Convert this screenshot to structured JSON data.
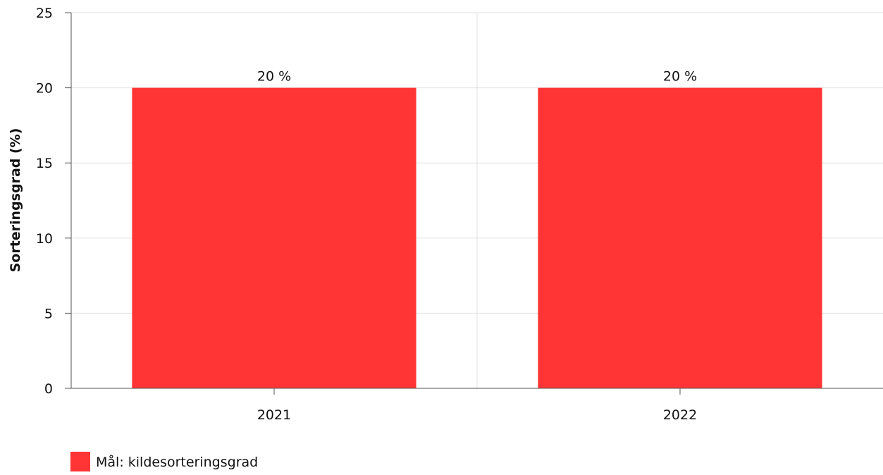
{
  "chart_data": {
    "type": "bar",
    "categories": [
      "2021",
      "2022"
    ],
    "series": [
      {
        "name": "Mål: kildesorteringsgrad",
        "values": [
          20,
          20
        ],
        "color": "#ff3434"
      }
    ],
    "data_labels": [
      "20 %",
      "20 %"
    ],
    "xlabel": "",
    "ylabel": "Sorteringsgrad (%)",
    "ylim": [
      0,
      25
    ],
    "yticks": [
      0,
      5,
      10,
      15,
      20,
      25
    ],
    "grid": true,
    "legend_position": "bottom-left"
  }
}
